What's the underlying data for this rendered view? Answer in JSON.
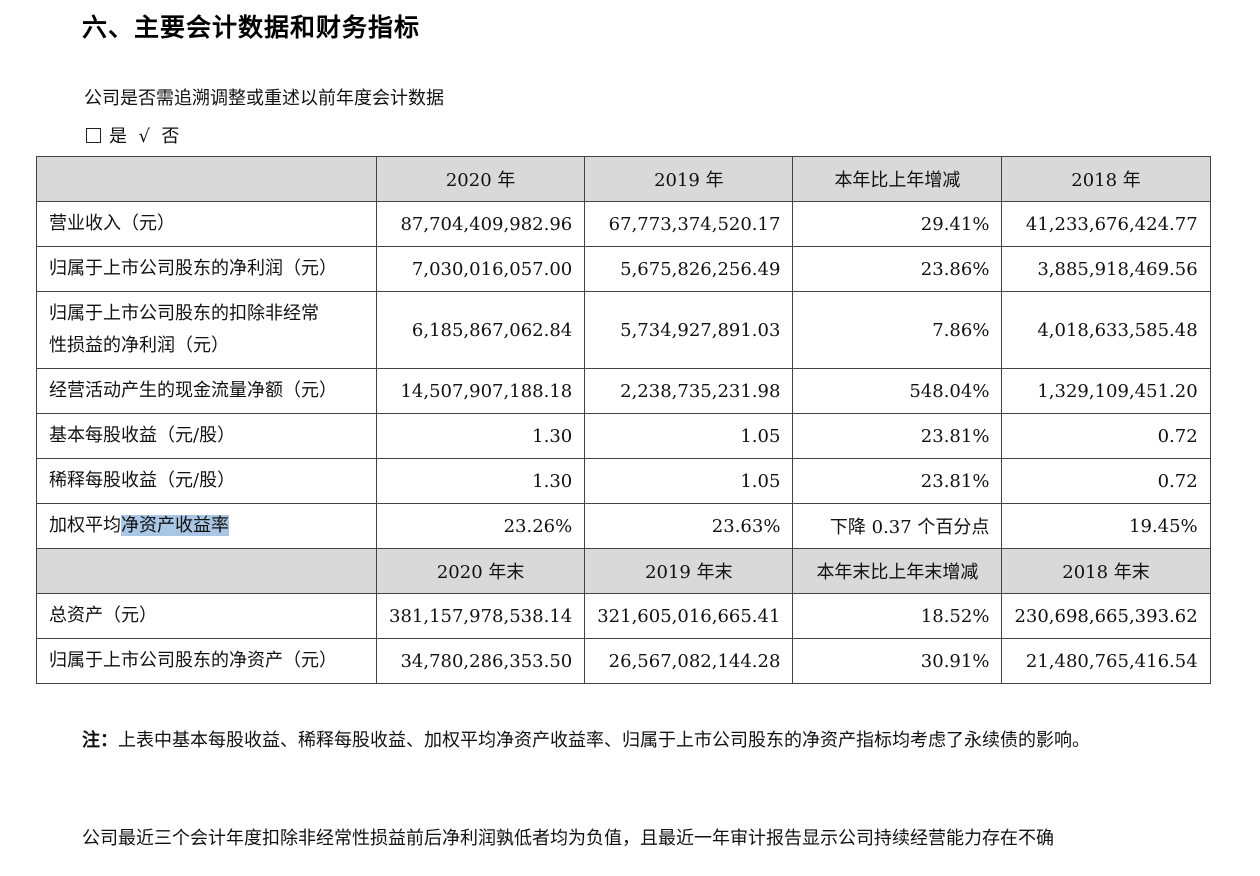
{
  "heading": "六、主要会计数据和财务指标",
  "restatement": {
    "question": "公司是否需追溯调整或重述以前年度会计数据",
    "yes_label": "是",
    "checkmark": "√",
    "no_label": "否"
  },
  "table": {
    "header_1": [
      "2020 年",
      "2019 年",
      "本年比上年增减",
      "2018 年"
    ],
    "rows_1": [
      {
        "label": "营业收入（元）",
        "values": [
          "87,704,409,982.96",
          "67,773,374,520.17",
          "29.41%",
          "41,233,676,424.77"
        ]
      },
      {
        "label": "归属于上市公司股东的净利润（元）",
        "values": [
          "7,030,016,057.00",
          "5,675,826,256.49",
          "23.86%",
          "3,885,918,469.56"
        ]
      },
      {
        "label_line1": "归属于上市公司股东的扣除非经常",
        "label_line2": "性损益的净利润（元）",
        "values": [
          "6,185,867,062.84",
          "5,734,927,891.03",
          "7.86%",
          "4,018,633,585.48"
        ]
      },
      {
        "label": "经营活动产生的现金流量净额（元）",
        "values": [
          "14,507,907,188.18",
          "2,238,735,231.98",
          "548.04%",
          "1,329,109,451.20"
        ]
      },
      {
        "label": "基本每股收益（元/股）",
        "values": [
          "1.30",
          "1.05",
          "23.81%",
          "0.72"
        ]
      },
      {
        "label": "稀释每股收益（元/股）",
        "values": [
          "1.30",
          "1.05",
          "23.81%",
          "0.72"
        ]
      },
      {
        "label_plain": "加权平均",
        "label_highlight": "净资产收益率",
        "values": [
          "23.26%",
          "23.63%",
          "下降 0.37 个百分点",
          "19.45%"
        ]
      }
    ],
    "header_2": [
      "2020 年末",
      "2019 年末",
      "本年末比上年末增减",
      "2018 年末"
    ],
    "rows_2": [
      {
        "label": "总资产（元）",
        "values": [
          "381,157,978,538.14",
          "321,605,016,665.41",
          "18.52%",
          "230,698,665,393.62"
        ]
      },
      {
        "label": "归属于上市公司股东的净资产（元）",
        "values": [
          "34,780,286,353.50",
          "26,567,082,144.28",
          "30.91%",
          "21,480,765,416.54"
        ]
      }
    ]
  },
  "note": {
    "prefix": "注：",
    "text": "上表中基本每股收益、稀释每股收益、加权平均净资产收益率、归属于上市公司股东的净资产指标均考虑了永续债的影响。"
  },
  "paragraph": "公司最近三个会计年度扣除非经常性损益前后净利润孰低者均为负值，且最近一年审计报告显示公司持续经营能力存在不确"
}
